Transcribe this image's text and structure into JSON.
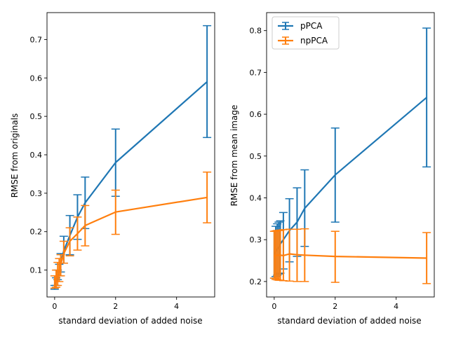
{
  "chart_data": [
    {
      "type": "line",
      "title": "",
      "xlabel": "standard deviation of added noise",
      "ylabel": "RMSE from originals",
      "xlim": [
        -0.25,
        5.25
      ],
      "ylim": [
        0.03,
        0.77
      ],
      "xticks": [
        0,
        2,
        4
      ],
      "yticks": [
        0.1,
        0.2,
        0.3,
        0.4,
        0.5,
        0.6,
        0.7
      ],
      "ytick_labels": [
        "0.1",
        "0.2",
        "0.3",
        "0.4",
        "0.5",
        "0.6",
        "0.7"
      ],
      "legend": null,
      "grid": false,
      "x": [
        0,
        0.05,
        0.1,
        0.15,
        0.2,
        0.3,
        0.5,
        0.75,
        1,
        2,
        5
      ],
      "series": [
        {
          "name": "pPCA",
          "color": "#1f77b4",
          "values": [
            0.055,
            0.07,
            0.087,
            0.1,
            0.12,
            0.15,
            0.19,
            0.238,
            0.275,
            0.38,
            0.59
          ],
          "err_low": [
            0.05,
            0.06,
            0.075,
            0.085,
            0.095,
            0.118,
            0.14,
            0.18,
            0.208,
            0.292,
            0.445
          ],
          "err_high": [
            0.06,
            0.08,
            0.1,
            0.115,
            0.143,
            0.188,
            0.242,
            0.296,
            0.342,
            0.467,
            0.736
          ]
        },
        {
          "name": "npPCA",
          "color": "#ff7f0e",
          "values": [
            0.07,
            0.08,
            0.09,
            0.1,
            0.115,
            0.143,
            0.175,
            0.195,
            0.216,
            0.251,
            0.289
          ],
          "err_low": [
            0.053,
            0.055,
            0.06,
            0.07,
            0.085,
            0.118,
            0.137,
            0.152,
            0.163,
            0.193,
            0.223
          ],
          "err_high": [
            0.085,
            0.1,
            0.12,
            0.13,
            0.14,
            0.175,
            0.21,
            0.238,
            0.268,
            0.308,
            0.355
          ]
        }
      ]
    },
    {
      "type": "line",
      "title": "",
      "xlabel": "standard deviation of added noise",
      "ylabel": "RMSE from mean image",
      "xlim": [
        -0.25,
        5.25
      ],
      "ylim": [
        0.163,
        0.843
      ],
      "xticks": [
        0,
        2,
        4
      ],
      "yticks": [
        0.2,
        0.3,
        0.4,
        0.5,
        0.6,
        0.7,
        0.8
      ],
      "ytick_labels": [
        "0.2",
        "0.3",
        "0.4",
        "0.5",
        "0.6",
        "0.7",
        "0.8"
      ],
      "legend": "upper left",
      "grid": false,
      "x": [
        0,
        0.05,
        0.1,
        0.15,
        0.2,
        0.3,
        0.5,
        0.75,
        1,
        2,
        5
      ],
      "series": [
        {
          "name": "pPCA",
          "color": "#1f77b4",
          "values": [
            0.265,
            0.272,
            0.278,
            0.283,
            0.29,
            0.3,
            0.322,
            0.342,
            0.375,
            0.455,
            0.64
          ],
          "err_low": [
            0.208,
            0.212,
            0.215,
            0.218,
            0.22,
            0.23,
            0.247,
            0.26,
            0.284,
            0.342,
            0.474
          ],
          "err_high": [
            0.32,
            0.332,
            0.338,
            0.342,
            0.345,
            0.365,
            0.398,
            0.424,
            0.467,
            0.567,
            0.806
          ]
        },
        {
          "name": "npPCA",
          "color": "#ff7f0e",
          "values": [
            0.26,
            0.262,
            0.263,
            0.263,
            0.263,
            0.262,
            0.266,
            0.264,
            0.263,
            0.26,
            0.256
          ],
          "err_low": [
            0.208,
            0.205,
            0.204,
            0.203,
            0.203,
            0.202,
            0.201,
            0.2,
            0.2,
            0.198,
            0.195
          ],
          "err_high": [
            0.32,
            0.321,
            0.322,
            0.322,
            0.323,
            0.324,
            0.325,
            0.325,
            0.326,
            0.32,
            0.317
          ]
        }
      ]
    }
  ]
}
